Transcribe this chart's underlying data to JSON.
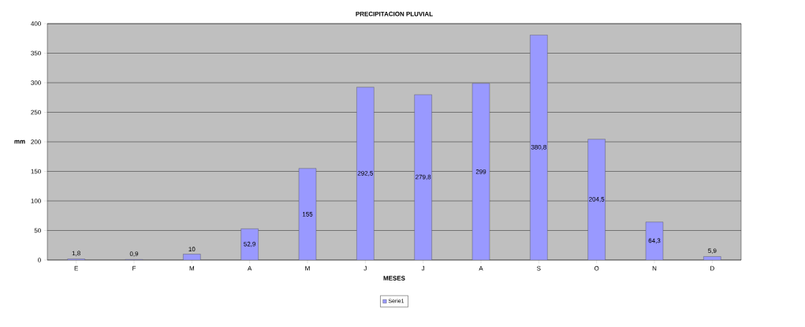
{
  "chart_data": {
    "type": "bar",
    "title": "PRECIPITACION PLUVIAL",
    "xlabel": "MESES",
    "ylabel": "mm",
    "categories": [
      "E",
      "F",
      "M",
      "A",
      "M",
      "J",
      "J",
      "A",
      "S",
      "O",
      "N",
      "D"
    ],
    "series": [
      {
        "name": "Serie1",
        "color": "#9999ff",
        "values": [
          1.8,
          0.9,
          10,
          52.9,
          155,
          292.5,
          279.8,
          299,
          380.8,
          204.5,
          64.3,
          5.9
        ],
        "value_labels": [
          "1,8",
          "0,9",
          "10",
          "52,9",
          "155",
          "292,5",
          "279,8",
          "299",
          "380,8",
          "204,5",
          "64,3",
          "5,9"
        ]
      }
    ],
    "ylim": [
      0,
      400
    ],
    "yticks": [
      0,
      50,
      100,
      150,
      200,
      250,
      300,
      350,
      400
    ],
    "grid": "y",
    "legend": "bottom"
  }
}
